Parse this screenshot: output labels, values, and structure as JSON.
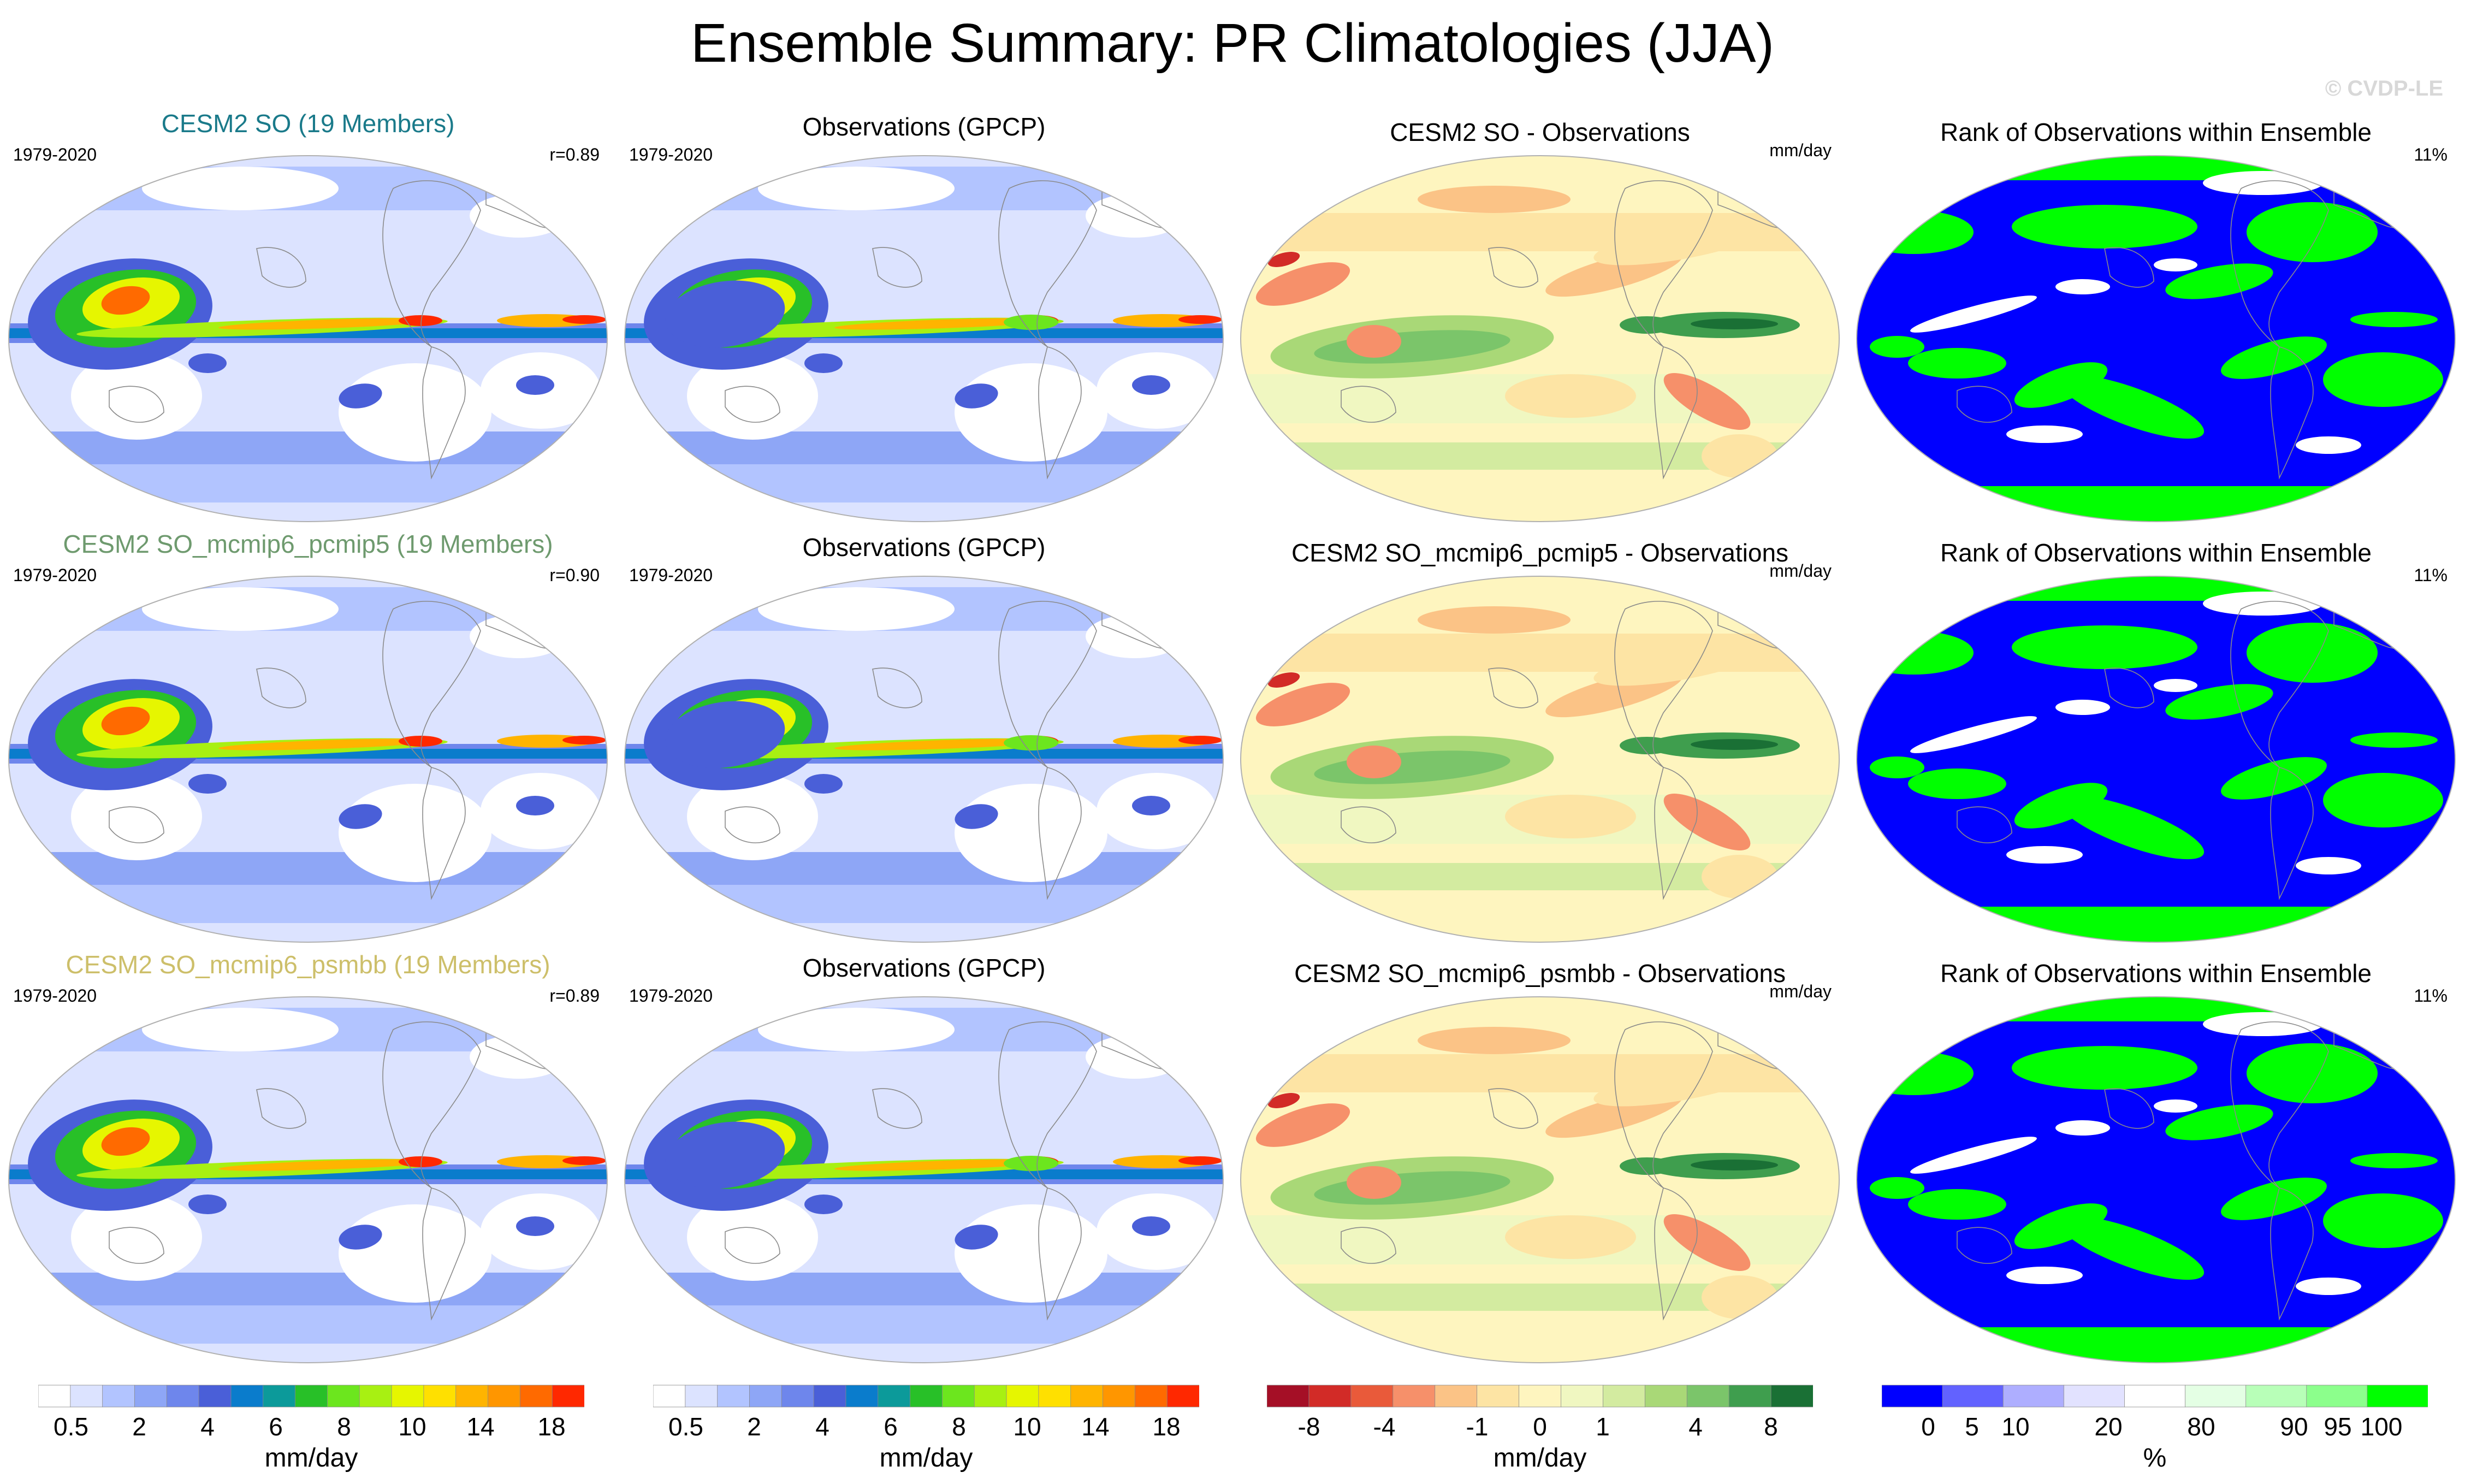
{
  "title": "Ensemble Summary: PR Climatologies (JJA)",
  "watermark": "© CVDP-LE",
  "colors": {
    "title1": "#1a7a8a",
    "title2": "#6e9a6e",
    "title3": "#cdbf6a",
    "pr_fill": [
      "#ffffff",
      "#dce3ff",
      "#b2c4ff",
      "#8ea6f6",
      "#6e86ec",
      "#4a5fd8",
      "#0a7ccc",
      "#0c9a9a",
      "#28c028",
      "#6ce61e",
      "#a8f012",
      "#e6f600",
      "#ffe000",
      "#ffb400",
      "#ff9600",
      "#ff6a00",
      "#ff2800"
    ],
    "diff_fill": [
      "#a50f26",
      "#d22b27",
      "#e95a3a",
      "#f6906a",
      "#fbc386",
      "#fde4a4",
      "#fef5bf",
      "#f0f7c1",
      "#d3eba0",
      "#a9d877",
      "#7bc56a",
      "#3f9e4e",
      "#1a7035"
    ],
    "rank_fill": [
      "#0000ff",
      "#6262ff",
      "#aeaeff",
      "#e2e2ff",
      "#ffffff",
      "#e4ffe4",
      "#b8ffb8",
      "#8cff8c",
      "#00ff00"
    ]
  },
  "rows": [
    {
      "clim": {
        "title": "CESM2 SO (19 Members)",
        "period": "1979-2020",
        "corr": "r=0.89"
      },
      "obs": {
        "title": "Observations (GPCP)",
        "period": "1979-2020"
      },
      "diff": {
        "title": "CESM2 SO - Observations",
        "units": "mm/day"
      },
      "rank": {
        "title": "Rank of Observations within Ensemble",
        "pct": "11%"
      }
    },
    {
      "clim": {
        "title": "CESM2 SO_mcmip6_pcmip5 (19 Members)",
        "period": "1979-2020",
        "corr": "r=0.90"
      },
      "obs": {
        "title": "Observations (GPCP)",
        "period": "1979-2020"
      },
      "diff": {
        "title": "CESM2 SO_mcmip6_pcmip5 - Observations",
        "units": "mm/day"
      },
      "rank": {
        "title": "Rank of Observations within Ensemble",
        "pct": "11%"
      }
    },
    {
      "clim": {
        "title": "CESM2 SO_mcmip6_psmbb (19 Members)",
        "period": "1979-2020",
        "corr": "r=0.89"
      },
      "obs": {
        "title": "Observations (GPCP)",
        "period": "1979-2020"
      },
      "diff": {
        "title": "CESM2 SO_mcmip6_psmbb - Observations",
        "units": "mm/day"
      },
      "rank": {
        "title": "Rank of Observations within Ensemble",
        "pct": "11%"
      }
    }
  ],
  "colorbars": {
    "clim": {
      "units": "mm/day",
      "labels": [
        "0.5",
        "2",
        "4",
        "6",
        "8",
        "10",
        "14",
        "18"
      ]
    },
    "obs": {
      "units": "mm/day",
      "labels": [
        "0.5",
        "2",
        "4",
        "6",
        "8",
        "10",
        "14",
        "18"
      ]
    },
    "diff": {
      "units": "mm/day",
      "labels": [
        "-8",
        "-4",
        "-1",
        "0",
        "1",
        "4",
        "8"
      ]
    },
    "rank": {
      "units": "%",
      "labels": [
        "0",
        "5",
        "10",
        "20",
        "80",
        "90",
        "95",
        "100"
      ]
    }
  },
  "chart_data": {
    "type": "heatmap",
    "title": "Ensemble Summary: PR Climatologies (JJA)",
    "variable": "PR",
    "season": "JJA",
    "period": "1979-2020",
    "layout": "3 rows x 4 columns of global maps",
    "columns": [
      "Ensemble mean climatology",
      "Observations (GPCP)",
      "Ensemble - Observations",
      "Rank of Observations within Ensemble"
    ],
    "ensembles": [
      {
        "name": "CESM2 SO",
        "members": 19,
        "pattern_correlation": 0.89,
        "rank_pct": 11
      },
      {
        "name": "CESM2 SO_mcmip6_pcmip5",
        "members": 19,
        "pattern_correlation": 0.9,
        "rank_pct": 11
      },
      {
        "name": "CESM2 SO_mcmip6_psmbb",
        "members": 19,
        "pattern_correlation": 0.89,
        "rank_pct": 11
      }
    ],
    "contour_levels": {
      "climatology_mm_day": [
        0.5,
        1,
        2,
        3,
        4,
        5,
        6,
        7,
        8,
        9,
        10,
        12,
        14,
        16,
        18
      ],
      "difference_mm_day": [
        -8,
        -6,
        -4,
        -2,
        -1,
        -0.5,
        0,
        0.5,
        1,
        2,
        4,
        6,
        8
      ],
      "rank_pct": [
        0,
        5,
        10,
        20,
        80,
        90,
        95,
        100
      ]
    }
  }
}
